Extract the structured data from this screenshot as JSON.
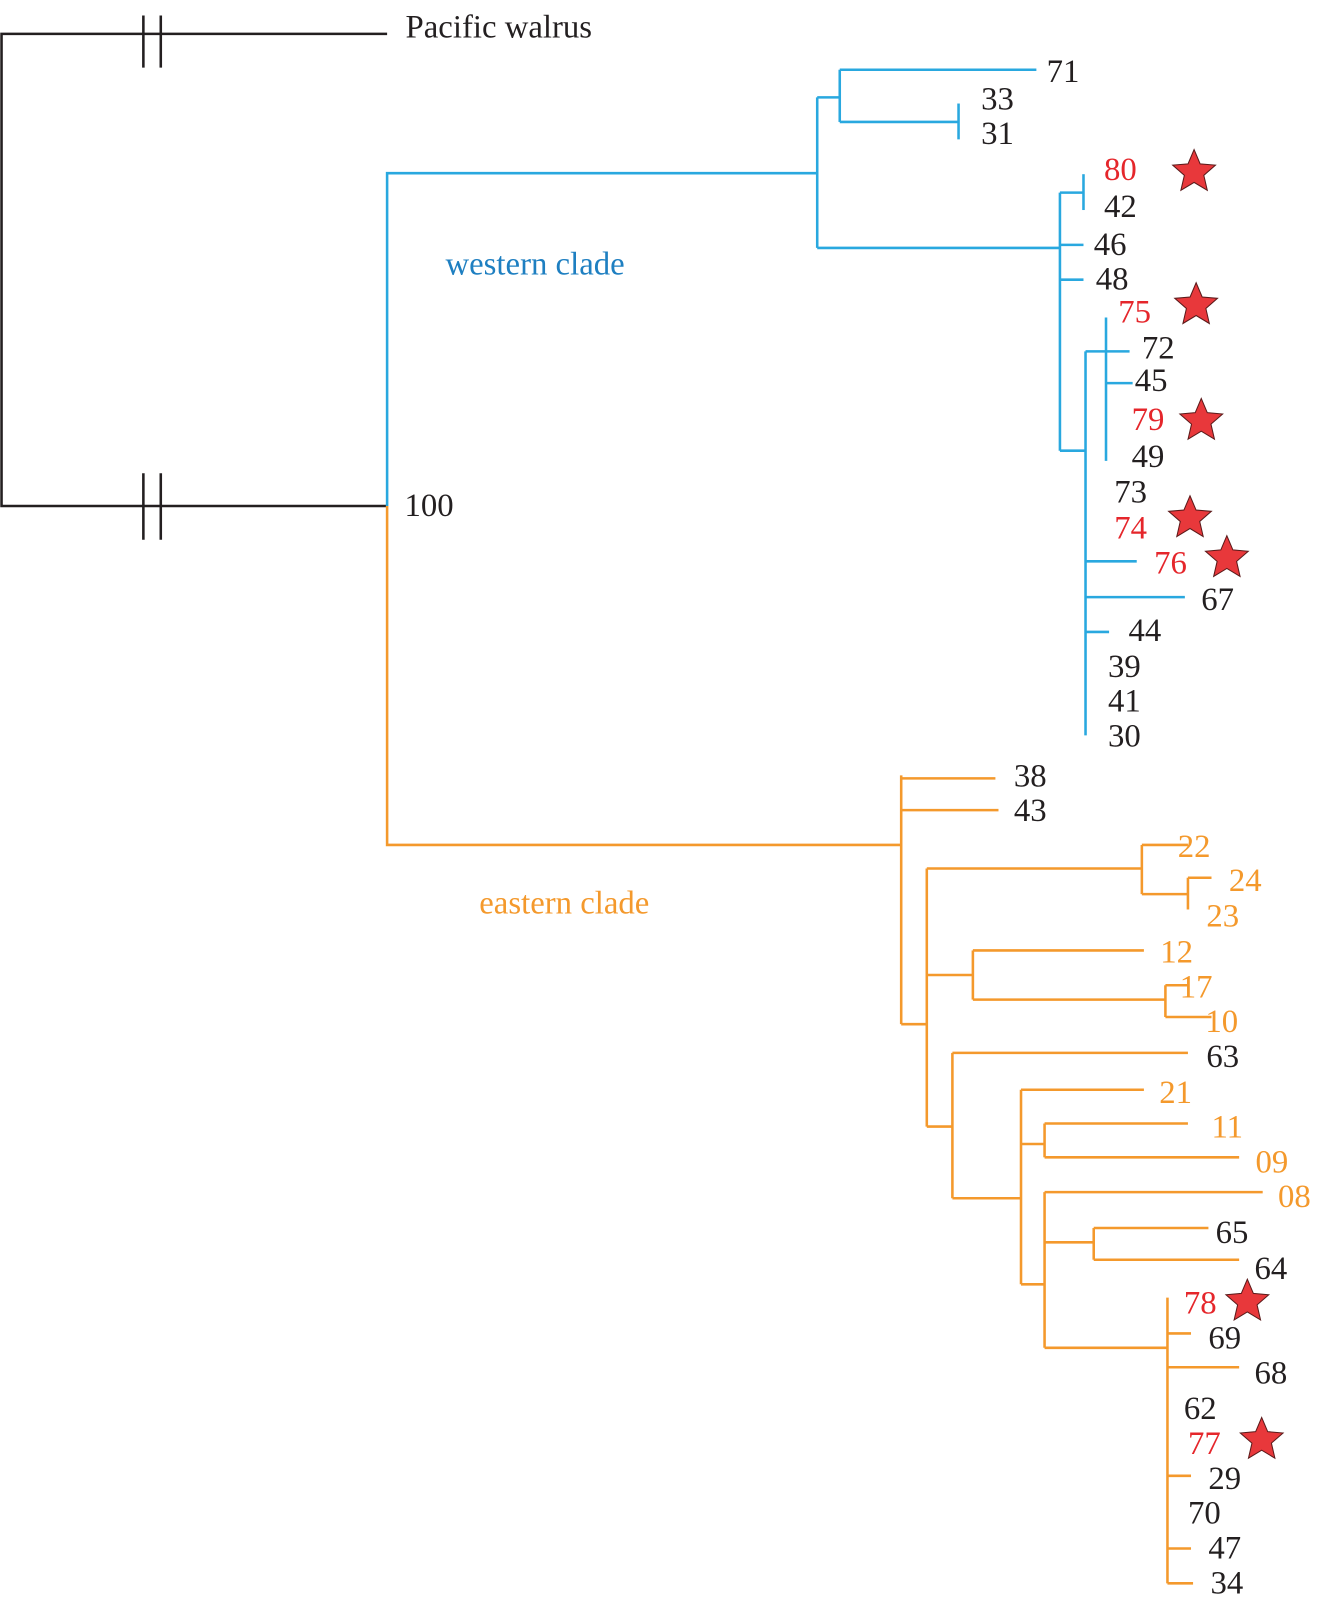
{
  "colors": {
    "black": "#231f20",
    "blue": "#29a8df",
    "orange": "#f4992c",
    "red": "#e5262b",
    "western_label": "#1e7fc1"
  },
  "outgroup": {
    "label": "Pacific walrus"
  },
  "bootstrap": "100",
  "clades": {
    "western": "western clade",
    "eastern": "eastern clade"
  },
  "leaves": [
    {
      "id": "71",
      "color": "black",
      "star": false
    },
    {
      "id": "33",
      "color": "black",
      "star": false
    },
    {
      "id": "31",
      "color": "black",
      "star": false
    },
    {
      "id": "80",
      "color": "red",
      "star": true
    },
    {
      "id": "42",
      "color": "black",
      "star": false
    },
    {
      "id": "46",
      "color": "black",
      "star": false
    },
    {
      "id": "48",
      "color": "black",
      "star": false
    },
    {
      "id": "75",
      "color": "red",
      "star": true
    },
    {
      "id": "72",
      "color": "black",
      "star": false
    },
    {
      "id": "45",
      "color": "black",
      "star": false
    },
    {
      "id": "79",
      "color": "red",
      "star": true
    },
    {
      "id": "49",
      "color": "black",
      "star": false
    },
    {
      "id": "73",
      "color": "black",
      "star": false
    },
    {
      "id": "74",
      "color": "red",
      "star": true
    },
    {
      "id": "76",
      "color": "red",
      "star": true
    },
    {
      "id": "67",
      "color": "black",
      "star": false
    },
    {
      "id": "44",
      "color": "black",
      "star": false
    },
    {
      "id": "39",
      "color": "black",
      "star": false
    },
    {
      "id": "41",
      "color": "black",
      "star": false
    },
    {
      "id": "30",
      "color": "black",
      "star": false
    },
    {
      "id": "38",
      "color": "black",
      "star": false
    },
    {
      "id": "43",
      "color": "black",
      "star": false
    },
    {
      "id": "22",
      "color": "orange",
      "star": false
    },
    {
      "id": "24",
      "color": "orange",
      "star": false
    },
    {
      "id": "23",
      "color": "orange",
      "star": false
    },
    {
      "id": "12",
      "color": "orange",
      "star": false
    },
    {
      "id": "17",
      "color": "orange",
      "star": false
    },
    {
      "id": "10",
      "color": "orange",
      "star": false
    },
    {
      "id": "63",
      "color": "black",
      "star": false
    },
    {
      "id": "21",
      "color": "orange",
      "star": false
    },
    {
      "id": "11",
      "color": "orange",
      "star": false
    },
    {
      "id": "09",
      "color": "orange",
      "star": false
    },
    {
      "id": "08",
      "color": "orange",
      "star": false
    },
    {
      "id": "65",
      "color": "black",
      "star": false
    },
    {
      "id": "64",
      "color": "black",
      "star": false
    },
    {
      "id": "78",
      "color": "red",
      "star": true
    },
    {
      "id": "69",
      "color": "black",
      "star": false
    },
    {
      "id": "68",
      "color": "black",
      "star": false
    },
    {
      "id": "62",
      "color": "black",
      "star": false
    },
    {
      "id": "77",
      "color": "red",
      "star": true
    },
    {
      "id": "29",
      "color": "black",
      "star": false
    },
    {
      "id": "70",
      "color": "black",
      "star": false
    },
    {
      "id": "47",
      "color": "black",
      "star": false
    },
    {
      "id": "34",
      "color": "black",
      "star": false
    }
  ]
}
